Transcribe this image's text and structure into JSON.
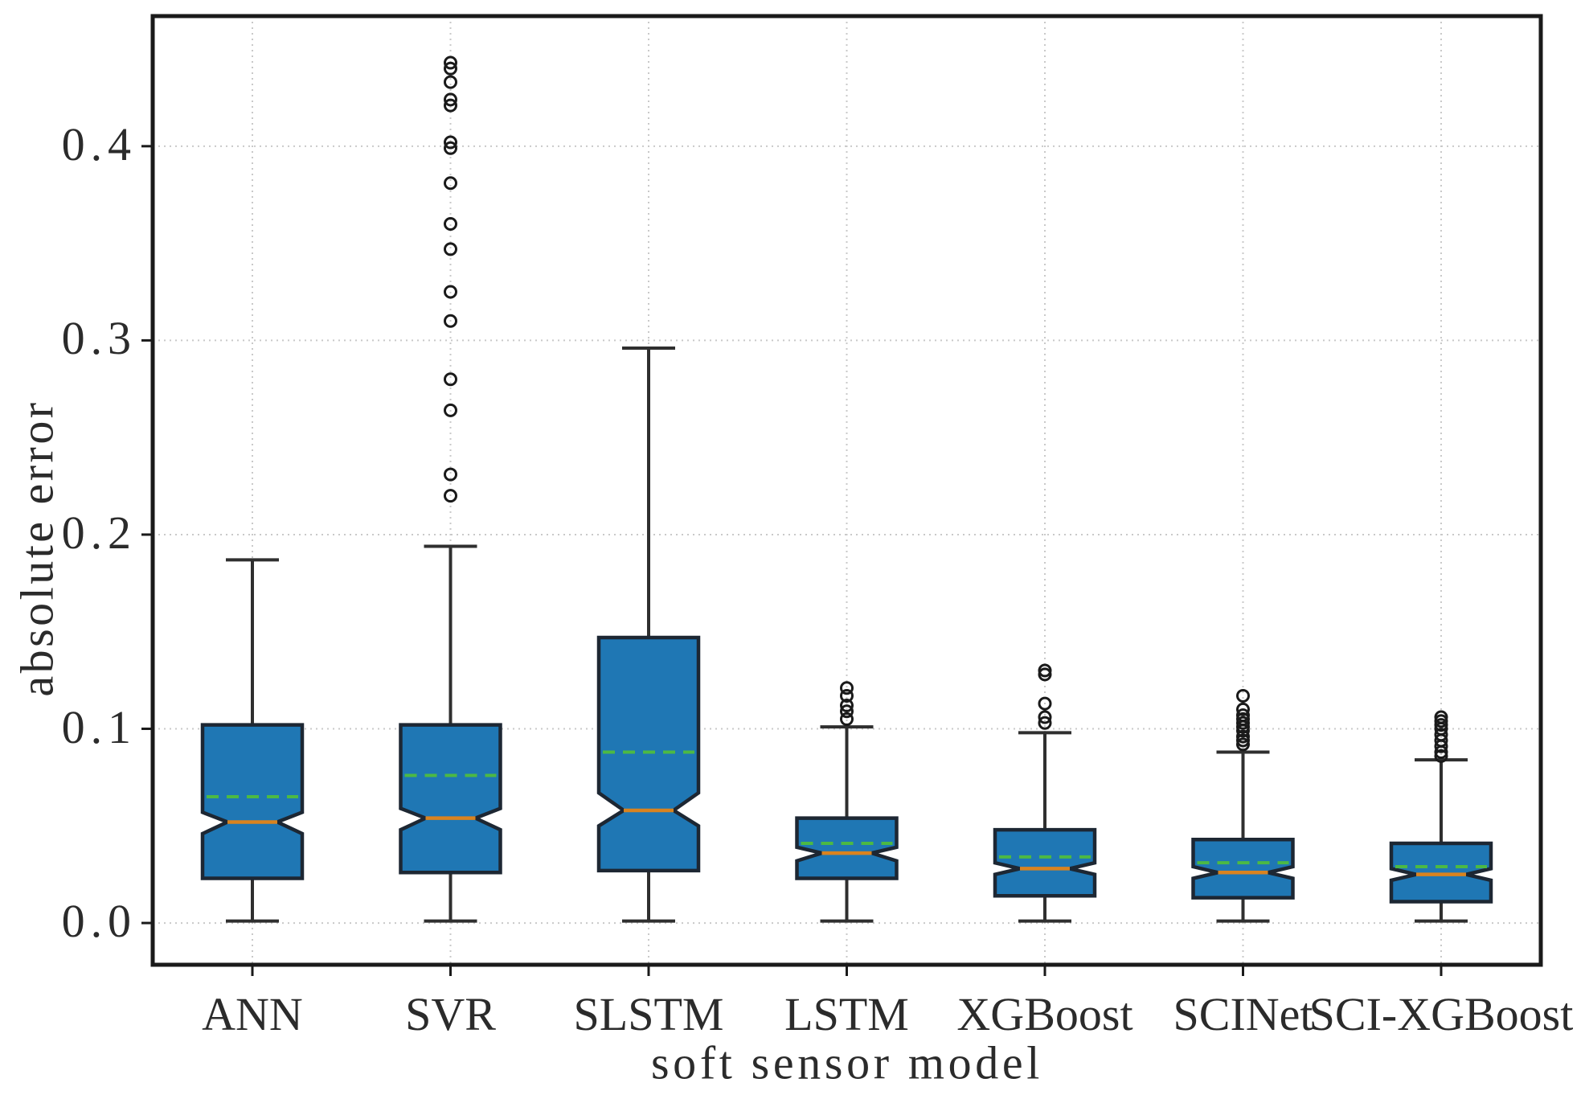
{
  "figure": {
    "background": "#ffffff"
  },
  "chart_data": {
    "type": "boxplot",
    "title": "",
    "xlabel": "soft sensor model",
    "ylabel": "absolute error",
    "categories": [
      "ANN",
      "SVR",
      "SLSTM",
      "LSTM",
      "XGBoost",
      "SCINet",
      "SCI-XGBoost"
    ],
    "yticks": [
      0.0,
      0.1,
      0.2,
      0.3,
      0.4
    ],
    "ytick_labels": [
      "0.0",
      "0.1",
      "0.2",
      "0.3",
      "0.4"
    ],
    "ylim": [
      -0.0215,
      0.467
    ],
    "grid": true,
    "notched": true,
    "legend": "none",
    "boxes": [
      {
        "name": "ANN",
        "whislo": 0.001,
        "q1": 0.023,
        "notch_lo": 0.046,
        "med": 0.052,
        "notch_hi": 0.057,
        "q3": 0.102,
        "whishi": 0.187,
        "mean": 0.065,
        "fliers": []
      },
      {
        "name": "SVR",
        "whislo": 0.001,
        "q1": 0.026,
        "notch_lo": 0.048,
        "med": 0.054,
        "notch_hi": 0.059,
        "q3": 0.102,
        "whishi": 0.194,
        "mean": 0.076,
        "fliers": [
          0.22,
          0.231,
          0.264,
          0.28,
          0.31,
          0.325,
          0.347,
          0.36,
          0.381,
          0.399,
          0.402,
          0.421,
          0.424,
          0.433,
          0.44,
          0.443
        ]
      },
      {
        "name": "SLSTM",
        "whislo": 0.001,
        "q1": 0.027,
        "notch_lo": 0.05,
        "med": 0.058,
        "notch_hi": 0.067,
        "q3": 0.147,
        "whishi": 0.296,
        "mean": 0.088,
        "fliers": []
      },
      {
        "name": "LSTM",
        "whislo": 0.001,
        "q1": 0.023,
        "notch_lo": 0.032,
        "med": 0.036,
        "notch_hi": 0.039,
        "q3": 0.054,
        "whishi": 0.101,
        "mean": 0.041,
        "fliers": [
          0.105,
          0.109,
          0.112,
          0.117,
          0.121
        ]
      },
      {
        "name": "XGBoost",
        "whislo": 0.001,
        "q1": 0.014,
        "notch_lo": 0.025,
        "med": 0.028,
        "notch_hi": 0.031,
        "q3": 0.048,
        "whishi": 0.098,
        "mean": 0.034,
        "fliers": [
          0.103,
          0.106,
          0.113,
          0.128,
          0.13
        ]
      },
      {
        "name": "SCINet",
        "whislo": 0.001,
        "q1": 0.013,
        "notch_lo": 0.023,
        "med": 0.026,
        "notch_hi": 0.029,
        "q3": 0.043,
        "whishi": 0.088,
        "mean": 0.031,
        "fliers": [
          0.092,
          0.094,
          0.096,
          0.099,
          0.101,
          0.103,
          0.105,
          0.107,
          0.11,
          0.117
        ]
      },
      {
        "name": "SCI-XGBoost",
        "whislo": 0.001,
        "q1": 0.011,
        "notch_lo": 0.022,
        "med": 0.025,
        "notch_hi": 0.028,
        "q3": 0.041,
        "whishi": 0.084,
        "mean": 0.029,
        "fliers": [
          0.086,
          0.088,
          0.091,
          0.094,
          0.097,
          0.1,
          0.102,
          0.104,
          0.106
        ]
      }
    ],
    "colors": {
      "box_fill": "#1f77b4",
      "box_edge": "#1d2733",
      "median": "#d9831f",
      "mean": "#4cb944",
      "whisker": "#2f2f2f",
      "flier_edge": "#1a1a1a",
      "grid": "#c9c9c9",
      "spine": "#1a1a1a",
      "text": "#2b2b2b"
    }
  }
}
